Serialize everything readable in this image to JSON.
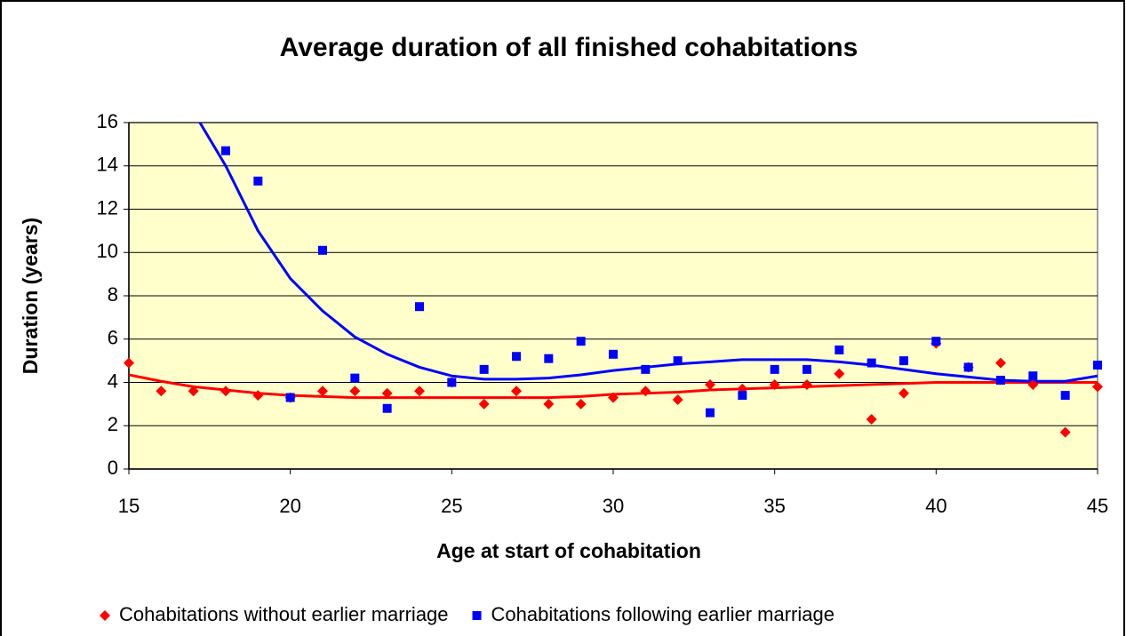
{
  "chart_data": {
    "type": "scatter",
    "title": "Average duration of all finished cohabitations",
    "x_label": "Age at start of cohabitation",
    "y_label": "Duration (years)",
    "xlim": [
      15,
      45
    ],
    "xticks": [
      15,
      20,
      25,
      30,
      35,
      40,
      45
    ],
    "ylim": [
      0,
      16
    ],
    "yticks": [
      0,
      2,
      4,
      6,
      8,
      10,
      12,
      14,
      16
    ],
    "grid": true,
    "legend": "bottom",
    "series": [
      {
        "name": "Cohabitations without earlier marriage",
        "color": "#ff0000",
        "marker": "diamond",
        "x": [
          15,
          16,
          17,
          18,
          19,
          20,
          21,
          22,
          23,
          24,
          25,
          26,
          27,
          28,
          29,
          30,
          31,
          32,
          33,
          34,
          35,
          36,
          37,
          38,
          39,
          40,
          41,
          42,
          43,
          44,
          45
        ],
        "values": [
          4.9,
          3.6,
          3.6,
          3.6,
          3.4,
          3.3,
          3.6,
          3.6,
          3.5,
          3.6,
          4.0,
          3.0,
          3.6,
          3.0,
          3.0,
          3.3,
          3.6,
          3.2,
          3.9,
          3.7,
          3.9,
          3.9,
          4.4,
          2.3,
          3.5,
          5.8,
          4.7,
          4.9,
          3.9,
          1.7,
          3.8
        ],
        "trend_x": [
          15,
          16,
          17,
          18,
          19,
          20,
          21,
          22,
          23,
          24,
          25,
          26,
          27,
          28,
          29,
          30,
          31,
          32,
          33,
          34,
          35,
          36,
          37,
          38,
          39,
          40,
          41,
          42,
          43,
          44,
          45
        ],
        "trend_values": [
          4.35,
          4.05,
          3.8,
          3.65,
          3.5,
          3.4,
          3.35,
          3.3,
          3.3,
          3.3,
          3.3,
          3.3,
          3.3,
          3.3,
          3.35,
          3.45,
          3.5,
          3.55,
          3.65,
          3.7,
          3.75,
          3.8,
          3.85,
          3.9,
          3.95,
          4.0,
          4.0,
          4.0,
          4.0,
          4.0,
          4.0
        ]
      },
      {
        "name": "Cohabitations following earlier marriage",
        "color": "#0000ff",
        "marker": "square",
        "x": [
          18,
          19,
          20,
          21,
          22,
          23,
          24,
          25,
          26,
          27,
          28,
          29,
          30,
          31,
          32,
          33,
          34,
          35,
          36,
          37,
          38,
          39,
          40,
          41,
          42,
          43,
          44,
          45
        ],
        "values": [
          14.7,
          13.3,
          3.3,
          10.1,
          4.2,
          2.8,
          7.5,
          4.0,
          4.6,
          5.2,
          5.1,
          5.9,
          5.3,
          4.6,
          5.0,
          2.6,
          3.4,
          4.6,
          4.6,
          5.5,
          4.9,
          5.0,
          5.9,
          4.7,
          4.1,
          4.3,
          3.4,
          4.8
        ],
        "trend_x": [
          17,
          18,
          19,
          20,
          21,
          22,
          23,
          24,
          25,
          26,
          27,
          28,
          29,
          30,
          31,
          32,
          33,
          34,
          35,
          36,
          37,
          38,
          39,
          40,
          41,
          42,
          43,
          44,
          45
        ],
        "trend_values": [
          16.5,
          14.0,
          11.0,
          8.8,
          7.3,
          6.1,
          5.3,
          4.7,
          4.3,
          4.15,
          4.15,
          4.2,
          4.35,
          4.55,
          4.7,
          4.85,
          4.95,
          5.05,
          5.05,
          5.05,
          4.95,
          4.8,
          4.6,
          4.4,
          4.25,
          4.1,
          4.05,
          4.05,
          4.3
        ]
      }
    ]
  }
}
